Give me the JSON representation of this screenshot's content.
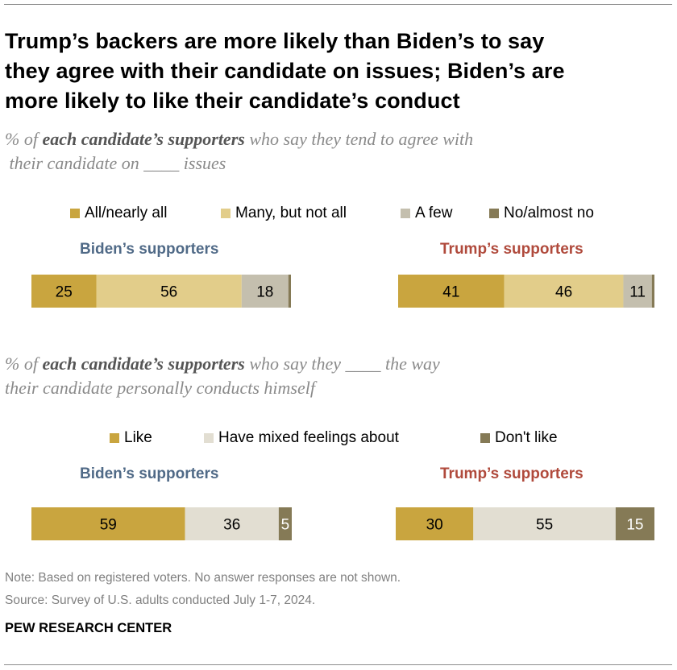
{
  "header": {
    "title_line1": "Trump’s backers are more likely than Biden’s to say",
    "title_line2": "they agree with their candidate on issues; Biden’s are",
    "title_line3": "more likely to like their candidate’s conduct"
  },
  "colors": {
    "gold": "#c9a53f",
    "light_gold": "#e2cd8a",
    "gray": "#c4bfae",
    "dark": "#857a56",
    "mixed": "#e2ded2",
    "biden": "#506a87",
    "trump": "#b04a3c"
  },
  "chart_data": [
    {
      "type": "bar",
      "orientation": "horizontal-stacked",
      "subtitle_prefix": "% of",
      "subtitle_bold": "each candidate’s supporters",
      "subtitle_rest": "who say they tend to agree with",
      "subtitle_line2": "their candidate on ____ issues",
      "legend": [
        "All/nearly all",
        "Many, but not all",
        "A few",
        "No/almost no"
      ],
      "series_colors": [
        "#c9a53f",
        "#e2cd8a",
        "#c4bfae",
        "#857a56"
      ],
      "groups": [
        {
          "name": "Biden’s supporters",
          "values": [
            25,
            56,
            18,
            1
          ],
          "labels": [
            "25",
            "56",
            "18",
            ""
          ]
        },
        {
          "name": "Trump’s supporters",
          "values": [
            41,
            46,
            11,
            1
          ],
          "labels": [
            "41",
            "46",
            "11",
            ""
          ]
        }
      ]
    },
    {
      "type": "bar",
      "orientation": "horizontal-stacked",
      "subtitle_prefix": "% of",
      "subtitle_bold": "each candidate’s supporters",
      "subtitle_rest": "who say they ____ the way",
      "subtitle_line2": "their candidate personally conducts himself",
      "legend": [
        "Like",
        "Have mixed feelings about",
        "Don't like"
      ],
      "series_colors": [
        "#c9a53f",
        "#e2ded2",
        "#857a56"
      ],
      "groups": [
        {
          "name": "Biden’s supporters",
          "values": [
            59,
            36,
            5
          ],
          "labels": [
            "59",
            "36",
            "5"
          ]
        },
        {
          "name": "Trump’s supporters",
          "values": [
            30,
            55,
            15
          ],
          "labels": [
            "30",
            "55",
            "15"
          ]
        }
      ]
    }
  ],
  "notes": {
    "note": "Note: Based on registered voters. No answer responses are not shown.",
    "source": "Source: Survey of U.S. adults conducted July 1-7, 2024."
  },
  "footer": {
    "org": "PEW RESEARCH CENTER"
  }
}
